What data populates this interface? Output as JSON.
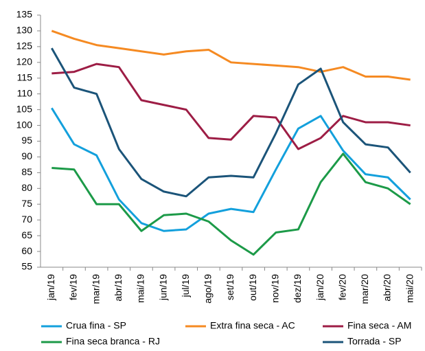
{
  "chart_data": {
    "type": "line",
    "categories": [
      "jan/19",
      "fev/19",
      "mar/19",
      "abr/19",
      "mai/19",
      "jun/19",
      "jul/19",
      "ago/19",
      "set/19",
      "out/19",
      "nov/19",
      "dez/19",
      "jan/20",
      "fev/20",
      "mar/20",
      "abr/20",
      "mai/20"
    ],
    "series": [
      {
        "name": "Crua fina - SP",
        "color": "#13a0dc",
        "values": [
          105.5,
          94,
          90.5,
          76.5,
          69,
          66.5,
          67,
          72,
          73.5,
          72.5,
          86,
          99,
          103,
          92,
          84.5,
          83.5,
          76.5
        ]
      },
      {
        "name": "Extra fina seca - AC",
        "color": "#f58a22",
        "values": [
          130,
          127.5,
          125.5,
          124.5,
          123.5,
          122.5,
          123.5,
          124,
          120,
          119.5,
          119,
          118.5,
          117,
          118.5,
          115.5,
          115.5,
          114.5
        ]
      },
      {
        "name": "Fina seca - AM",
        "color": "#9d1d45",
        "values": [
          116.5,
          117,
          119.5,
          118.5,
          108,
          106.5,
          105,
          96,
          95.5,
          103,
          102.5,
          92.5,
          96,
          103,
          101,
          101,
          100
        ]
      },
      {
        "name": "Fina seca branca - RJ",
        "color": "#1c9a48",
        "values": [
          86.5,
          86,
          75,
          75,
          66.5,
          71.5,
          72,
          69.5,
          63.5,
          59,
          66,
          67,
          82,
          91,
          82,
          80,
          75
        ]
      },
      {
        "name": "Torrada - SP",
        "color": "#1b5479",
        "values": [
          124.5,
          112,
          110,
          92.5,
          83,
          79,
          77.5,
          83.5,
          84,
          83.5,
          97.5,
          113,
          118,
          101,
          94,
          93,
          85
        ]
      }
    ],
    "ylim": [
      55,
      135
    ],
    "yticks": [
      55,
      60,
      65,
      70,
      75,
      80,
      85,
      90,
      95,
      100,
      105,
      110,
      115,
      120,
      125,
      130,
      135
    ],
    "grid": false,
    "legend": "bottom"
  }
}
